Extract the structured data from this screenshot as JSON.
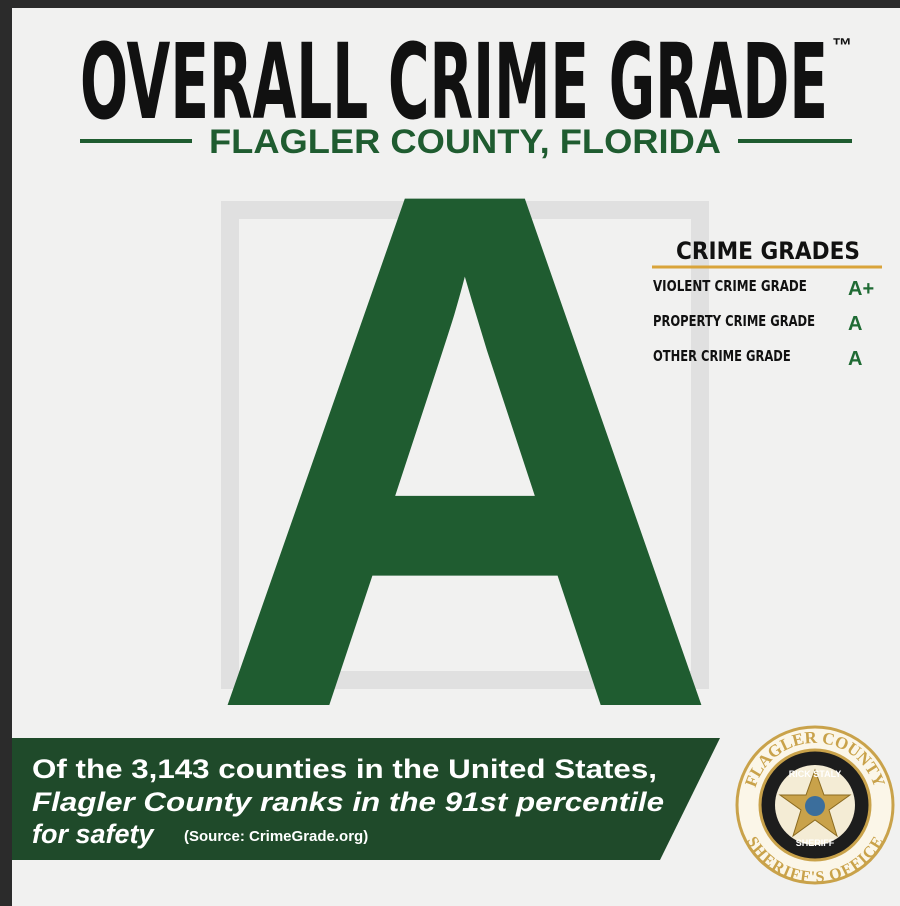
{
  "header": {
    "title": "OVERALL CRIME GRADE",
    "trademark": "™",
    "subtitle": "FLAGLER COUNTY, FLORIDA"
  },
  "overall_grade": "A",
  "grades_panel": {
    "heading": "CRIME GRADES",
    "rows": [
      [
        "VIOLENT CRIME GRADE",
        "A+"
      ],
      [
        "PROPERTY CRIME GRADE",
        "A"
      ],
      [
        "OTHER CRIME GRADE",
        "A"
      ]
    ]
  },
  "banner": {
    "line1": "Of the 3,143 counties in the United States,",
    "line2": "Flagler County ranks in the 91st percentile",
    "line3": "for safety",
    "source": "(Source: CrimeGrade.org)"
  },
  "badge": {
    "top": "FLAGLER COUNTY",
    "bottom": "SHERIFF'S OFFICE",
    "name": "RICK STALY",
    "role": "SHERIFF"
  }
}
